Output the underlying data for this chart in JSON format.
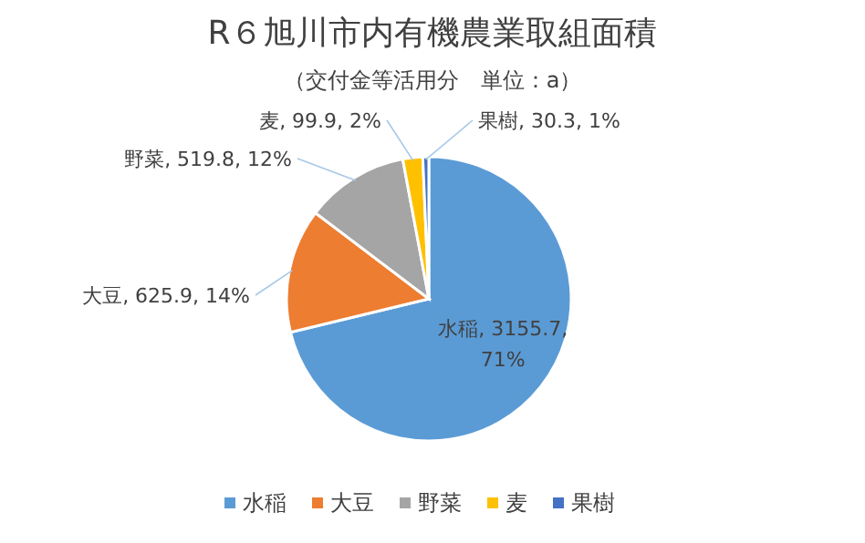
{
  "chart_data": {
    "type": "pie",
    "title": "R６旭川市内有機農業取組面積",
    "subtitle": "（交付金等活用分　単位：a）",
    "categories": [
      "水稲",
      "大豆",
      "野菜",
      "麦",
      "果樹"
    ],
    "values": [
      3155.7,
      625.9,
      519.8,
      99.9,
      30.3
    ],
    "colors": [
      "#5b9bd5",
      "#ed7d31",
      "#a5a5a5",
      "#ffc000",
      "#4472c4"
    ],
    "value_labels": [
      "水稲, 3155.7, 71%",
      "大豆, 625.9, 14%",
      "野菜, 519.8, 12%",
      "麦, 99.9, 2%",
      "果樹, 30.3, 1%"
    ],
    "legend": "bottom"
  }
}
